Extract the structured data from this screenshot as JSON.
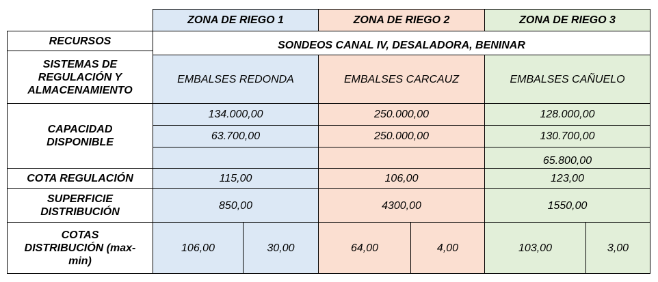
{
  "header": {
    "zone1": "ZONA DE RIEGO 1",
    "zone2": "ZONA DE RIEGO 2",
    "zone3": "ZONA DE RIEGO 3"
  },
  "rows": {
    "recursos": {
      "label": "RECURSOS",
      "value": "SONDEOS CANAL IV, DESALADORA, BENINAR"
    },
    "sistemas": {
      "label_line1": "SISTEMAS DE",
      "label_line2": "REGULACIÓN Y",
      "label_line3": "ALMACENAMIENTO",
      "zone1": "EMBALSES REDONDA",
      "zone2": "EMBALSES CARCAUZ",
      "zone3": "EMBALSES CAÑUELO"
    },
    "capacidad": {
      "label_line1": "CAPACIDAD",
      "label_line2": "DISPONIBLE",
      "zone1": [
        "134.000,00",
        "63.700,00"
      ],
      "zone2": [
        "250.000,00",
        "250.000,00"
      ],
      "zone3": [
        "128.000,00",
        "130.700,00",
        "65.800,00"
      ]
    },
    "cota_regulacion": {
      "label": "COTA REGULACIÓN",
      "zone1": "115,00",
      "zone2": "106,00",
      "zone3": "123,00"
    },
    "superficie": {
      "label_line1": "SUPERFICIE",
      "label_line2": "DISTRIBUCIÓN",
      "zone1": "850,00",
      "zone2": "4300,00",
      "zone3": "1550,00"
    },
    "cotas_distribucion": {
      "label_line1": "COTAS",
      "label_line2": "DISTRIBUCIÓN (max-",
      "label_line3": "min)",
      "zone1": [
        "106,00",
        "30,00"
      ],
      "zone2": [
        "64,00",
        "4,00"
      ],
      "zone3": [
        "103,00",
        "3,00"
      ]
    }
  }
}
